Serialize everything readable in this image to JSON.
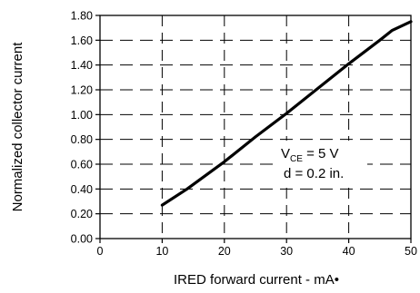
{
  "chart_data": {
    "type": "line",
    "title": "",
    "xlabel": "IRED forward current - mA•",
    "ylabel": "Normalized collector current",
    "xlim": [
      0,
      50
    ],
    "ylim": [
      0,
      1.8
    ],
    "xticks": [
      0,
      10,
      20,
      30,
      40,
      50
    ],
    "yticks": [
      0.0,
      0.2,
      0.4,
      0.6,
      0.8,
      1.0,
      1.2,
      1.4,
      1.6,
      1.8
    ],
    "xtick_labels": [
      "0",
      "10",
      "20",
      "30",
      "40",
      "50"
    ],
    "ytick_labels": [
      "0.00",
      "0.20",
      "0.40",
      "0.60",
      "0.80",
      "1.00",
      "1.20",
      "1.40",
      "1.60",
      "1.80"
    ],
    "grid": true,
    "grid_style": "dashed",
    "series": [
      {
        "x": [
          10,
          14,
          20,
          25,
          30,
          35,
          40,
          45,
          47,
          50
        ],
        "y": [
          0.27,
          0.4,
          0.62,
          0.82,
          1.01,
          1.21,
          1.41,
          1.6,
          1.68,
          1.75
        ]
      }
    ],
    "annotations": {
      "vce_main": "V",
      "vce_sub": "CE",
      "vce_rest": " = 5 V",
      "distance": "d = 0.2 in."
    }
  }
}
